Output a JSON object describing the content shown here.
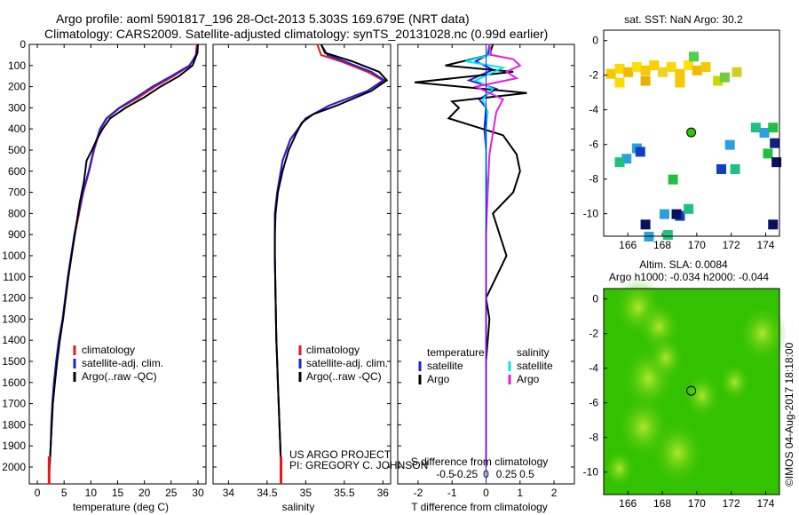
{
  "header": {
    "line1": "Argo profile: aoml 5901817_196 28-Oct-2013 5.303S 169.679E (NRT data)",
    "line2": "Climatology: CARS2009. Satellite-adjusted climatology: synTS_20131028.nc (0.99d earlier)"
  },
  "credit": {
    "project": "US ARGO PROJECT",
    "pi": "PI: GREGORY C. JOHNSON"
  },
  "side_stamp": "©IMOS 04-Aug-2017 18:18:00",
  "colors": {
    "climatology": "#e31a1c",
    "satellite": "#1f1fe0",
    "argo": "#000000",
    "sal_satellite": "#00e5ee",
    "sal_argo": "#e020e0",
    "sla_green": "#33c200"
  },
  "chart_data": [
    {
      "type": "line",
      "panel": "temperature",
      "xlabel": "temperature (deg C)",
      "ylabel": "",
      "xlim": [
        -1.5,
        31.5
      ],
      "ylim": [
        2080,
        0
      ],
      "xticks": [
        0,
        5,
        10,
        15,
        20,
        25,
        30
      ],
      "yticks": [
        0,
        100,
        200,
        300,
        400,
        500,
        600,
        700,
        800,
        900,
        1000,
        1100,
        1200,
        1300,
        1400,
        1500,
        1600,
        1700,
        1800,
        1900,
        2000
      ],
      "legend": [
        "climatology",
        "satellite-adj. clim.",
        "Argo(..raw -QC)"
      ],
      "series": [
        {
          "name": "climatology",
          "color": "#e31a1c",
          "x": [
            29.8,
            29.6,
            28.5,
            25.5,
            22.0,
            19.0,
            15.5,
            13.0,
            11.8,
            10.6,
            9.7,
            8.6,
            7.8,
            7.0,
            6.4,
            5.8,
            5.3,
            4.8,
            4.1,
            3.6,
            3.2,
            2.9,
            2.7,
            2.5,
            2.4,
            2.3,
            2.2
          ],
          "y": [
            0,
            50,
            100,
            150,
            200,
            250,
            300,
            350,
            400,
            500,
            600,
            700,
            800,
            900,
            1000,
            1100,
            1200,
            1300,
            1400,
            1500,
            1600,
            1700,
            1800,
            1900,
            1950,
            2000,
            2040
          ]
        },
        {
          "name": "satellite-adj. clim.",
          "color": "#1f1fe0",
          "x": [
            30.0,
            29.7,
            28.4,
            25.0,
            21.5,
            18.5,
            15.3,
            12.9,
            11.7,
            10.5,
            9.6,
            8.5,
            7.7,
            6.9,
            6.3,
            5.7,
            5.2,
            4.7,
            4.0,
            3.5,
            3.1,
            2.8,
            2.6,
            2.5,
            2.4,
            2.3
          ],
          "y": [
            0,
            50,
            100,
            150,
            200,
            250,
            300,
            350,
            400,
            500,
            600,
            700,
            800,
            900,
            1000,
            1100,
            1200,
            1300,
            1400,
            1500,
            1600,
            1700,
            1800,
            1900,
            1950,
            2000
          ]
        },
        {
          "name": "Argo(..raw -QC)",
          "color": "#000000",
          "x": [
            30.0,
            29.9,
            29.0,
            26.5,
            23.0,
            20.0,
            16.5,
            13.6,
            12.2,
            11.1,
            10.2,
            9.2,
            8.7,
            7.9,
            7.0,
            6.4,
            5.8,
            5.3,
            4.8,
            4.2,
            3.7,
            3.3,
            2.9,
            2.7,
            2.5,
            2.4,
            2.3
          ],
          "y": [
            0,
            40,
            100,
            150,
            200,
            250,
            300,
            350,
            400,
            450,
            500,
            550,
            650,
            750,
            900,
            1000,
            1100,
            1200,
            1300,
            1400,
            1500,
            1600,
            1700,
            1800,
            1900,
            1950,
            2000
          ]
        }
      ]
    },
    {
      "type": "line",
      "panel": "salinity",
      "xlabel": "salinity",
      "ylabel": "",
      "xlim": [
        33.8,
        36.1
      ],
      "ylim": [
        2080,
        0
      ],
      "xticks": [
        34,
        34.5,
        35,
        35.5,
        36
      ],
      "legend": [
        "climatology",
        "satellite-adj. clim.",
        "Argo(..raw -QC)"
      ],
      "series": [
        {
          "name": "climatology",
          "color": "#e31a1c",
          "x": [
            35.15,
            35.2,
            35.45,
            35.8,
            36.0,
            35.8,
            35.3,
            35.0,
            34.9,
            34.8,
            34.7,
            34.63,
            34.6,
            34.6,
            34.6,
            34.61,
            34.62,
            34.63,
            34.64,
            34.65,
            34.66,
            34.67,
            34.68,
            34.68
          ],
          "y": [
            0,
            50,
            80,
            130,
            170,
            220,
            290,
            350,
            400,
            450,
            550,
            700,
            800,
            900,
            1000,
            1200,
            1400,
            1500,
            1600,
            1700,
            1800,
            1900,
            2000,
            2040
          ]
        },
        {
          "name": "satellite-adj. clim.",
          "color": "#1f1fe0",
          "x": [
            35.2,
            35.28,
            35.5,
            35.85,
            36.02,
            35.8,
            35.3,
            35.0,
            34.9,
            34.8,
            34.7,
            34.63,
            34.6,
            34.6,
            34.6,
            34.61,
            34.62,
            34.63,
            34.64,
            34.65,
            34.66,
            34.67,
            34.68
          ],
          "y": [
            0,
            50,
            80,
            130,
            170,
            220,
            290,
            350,
            400,
            450,
            550,
            700,
            800,
            900,
            1000,
            1200,
            1400,
            1500,
            1600,
            1700,
            1800,
            1900,
            2000
          ]
        },
        {
          "name": "Argo(..raw -QC)",
          "color": "#000000",
          "x": [
            35.2,
            35.25,
            35.6,
            35.95,
            36.05,
            35.85,
            35.4,
            35.1,
            34.95,
            34.88,
            34.78,
            34.7,
            34.64,
            34.61,
            34.6,
            34.6,
            34.61,
            34.62,
            34.63,
            34.64,
            34.65,
            34.66,
            34.67,
            34.68
          ],
          "y": [
            0,
            40,
            80,
            130,
            170,
            220,
            290,
            330,
            370,
            420,
            500,
            600,
            700,
            800,
            900,
            1000,
            1200,
            1400,
            1500,
            1600,
            1700,
            1800,
            1900,
            2000
          ]
        }
      ]
    },
    {
      "type": "line",
      "panel": "difference",
      "xlabel": "T difference from climatology",
      "xlabel_top": "S difference from climatology",
      "ylabel": "",
      "xlim": [
        -2.6,
        2.6
      ],
      "ylim": [
        2080,
        0
      ],
      "xticks_T": [
        -2,
        -1,
        0,
        1,
        2
      ],
      "xticks_S": [
        "-0.5",
        "-0.25",
        "0",
        "0.25",
        "0.5"
      ],
      "xticks_S_values": [
        -0.5,
        -0.25,
        0,
        0.25,
        0.5
      ],
      "legend_temperature": {
        "title": "temperature",
        "items": [
          "satellite",
          "Argo"
        ]
      },
      "legend_salinity": {
        "title": "salinity",
        "items": [
          "satellite",
          "Argo"
        ]
      },
      "series": [
        {
          "name": "T satellite",
          "color": "#1f1fe0",
          "x": [
            0.1,
            0.05,
            -0.3,
            0.2,
            -0.5,
            0.3,
            -0.2,
            0.0,
            -0.05,
            0.0,
            0.0,
            0.02,
            0.0,
            0.0,
            0.0,
            0.0,
            0.0,
            0.0,
            0.0
          ],
          "y": [
            0,
            50,
            80,
            120,
            170,
            210,
            260,
            300,
            400,
            500,
            600,
            700,
            800,
            1000,
            1200,
            1400,
            1600,
            1800,
            2000
          ]
        },
        {
          "name": "T Argo",
          "color": "#000000",
          "x": [
            0.2,
            0.1,
            -1.2,
            0.8,
            -2.1,
            1.2,
            -1.0,
            -0.8,
            -1.1,
            0.5,
            0.9,
            1.0,
            0.8,
            0.2,
            0.4,
            0.6,
            0.3,
            0.0,
            0.1,
            0.05,
            0.0,
            0.0,
            0.0,
            0.0,
            0.0
          ],
          "y": [
            0,
            50,
            100,
            130,
            180,
            230,
            270,
            300,
            350,
            430,
            520,
            600,
            700,
            800,
            900,
            1000,
            1100,
            1200,
            1300,
            1400,
            1500,
            1600,
            1700,
            1900,
            2000
          ]
        },
        {
          "name": "S satellite",
          "color": "#00e5ee",
          "x": [
            0.1,
            0.12,
            -0.6,
            0.5,
            -0.3,
            0.2,
            -0.1,
            0.05,
            0.0,
            0.0,
            0.0,
            0.0,
            0.0,
            0.0,
            0.0
          ],
          "y": [
            0,
            50,
            80,
            110,
            170,
            210,
            260,
            320,
            400,
            600,
            800,
            1000,
            1400,
            1800,
            2000
          ]
        },
        {
          "name": "S Argo",
          "color": "#e020e0",
          "x": [
            0.1,
            0.15,
            0.8,
            1.0,
            0.6,
            0.9,
            -0.3,
            0.5,
            0.3,
            0.2,
            0.1,
            0.05,
            0.0,
            0.0,
            0.0,
            0.0
          ],
          "y": [
            0,
            50,
            70,
            100,
            130,
            160,
            200,
            260,
            320,
            420,
            520,
            700,
            900,
            1200,
            1600,
            2000
          ]
        }
      ]
    },
    {
      "type": "scatter",
      "panel": "sst_map",
      "title": "sat. SST: NaN  Argo: 30.2",
      "xlim": [
        164.6,
        174.8
      ],
      "ylim": [
        -11.3,
        0.6
      ],
      "xticks": [
        166,
        168,
        170,
        172,
        174
      ],
      "yticks": [
        0,
        -2,
        -4,
        -6,
        -8,
        -10
      ],
      "argo_position": {
        "lon": 169.679,
        "lat": -5.303
      },
      "points": [
        {
          "lon": 165.0,
          "lat": -1.9,
          "c": "#f6c800"
        },
        {
          "lon": 165.5,
          "lat": -1.6,
          "c": "#ffd700"
        },
        {
          "lon": 166.0,
          "lat": -1.8,
          "c": "#f2b800"
        },
        {
          "lon": 166.5,
          "lat": -1.5,
          "c": "#ffe000"
        },
        {
          "lon": 167.0,
          "lat": -1.7,
          "c": "#f6c800"
        },
        {
          "lon": 167.5,
          "lat": -1.4,
          "c": "#ffcc00"
        },
        {
          "lon": 168.0,
          "lat": -1.8,
          "c": "#f0d020"
        },
        {
          "lon": 168.5,
          "lat": -1.5,
          "c": "#ffd700"
        },
        {
          "lon": 169.0,
          "lat": -1.9,
          "c": "#f6c800"
        },
        {
          "lon": 169.5,
          "lat": -1.4,
          "c": "#ffe000"
        },
        {
          "lon": 170.0,
          "lat": -1.7,
          "c": "#f2b800"
        },
        {
          "lon": 170.5,
          "lat": -1.5,
          "c": "#f6c800"
        },
        {
          "lon": 165.5,
          "lat": -2.4,
          "c": "#ffd700"
        },
        {
          "lon": 167.0,
          "lat": -2.3,
          "c": "#e8b000"
        },
        {
          "lon": 169.0,
          "lat": -2.4,
          "c": "#f6c800"
        },
        {
          "lon": 171.2,
          "lat": -2.3,
          "c": "#c8d800"
        },
        {
          "lon": 169.8,
          "lat": -0.9,
          "c": "#50d050"
        },
        {
          "lon": 171.6,
          "lat": -2.1,
          "c": "#70cc40"
        },
        {
          "lon": 172.3,
          "lat": -1.8,
          "c": "#d0d020"
        },
        {
          "lon": 166.5,
          "lat": -6.2,
          "c": "#2aa0e0"
        },
        {
          "lon": 165.9,
          "lat": -6.8,
          "c": "#2aa0e0"
        },
        {
          "lon": 166.7,
          "lat": -6.4,
          "c": "#1040c0"
        },
        {
          "lon": 165.5,
          "lat": -7.0,
          "c": "#20c080"
        },
        {
          "lon": 171.9,
          "lat": -6.0,
          "c": "#2aa0e0"
        },
        {
          "lon": 171.4,
          "lat": -7.4,
          "c": "#1040c0"
        },
        {
          "lon": 172.2,
          "lat": -7.4,
          "c": "#20c080"
        },
        {
          "lon": 168.6,
          "lat": -8.0,
          "c": "#20c040"
        },
        {
          "lon": 173.4,
          "lat": -5.0,
          "c": "#20c080"
        },
        {
          "lon": 173.9,
          "lat": -5.3,
          "c": "#2aa0e0"
        },
        {
          "lon": 174.1,
          "lat": -6.5,
          "c": "#20c040"
        },
        {
          "lon": 174.5,
          "lat": -5.9,
          "c": "#102080"
        },
        {
          "lon": 174.4,
          "lat": -5.0,
          "c": "#20c040"
        },
        {
          "lon": 174.6,
          "lat": -7.0,
          "c": "#0a1060"
        },
        {
          "lon": 168.1,
          "lat": -10.0,
          "c": "#2aa0e0"
        },
        {
          "lon": 169.0,
          "lat": -10.1,
          "c": "#1040c0"
        },
        {
          "lon": 168.8,
          "lat": -10.0,
          "c": "#0a1060"
        },
        {
          "lon": 169.5,
          "lat": -9.7,
          "c": "#20c080"
        },
        {
          "lon": 167.0,
          "lat": -10.6,
          "c": "#0a1060"
        },
        {
          "lon": 174.4,
          "lat": -10.6,
          "c": "#0a1060"
        },
        {
          "lon": 168.3,
          "lat": -11.2,
          "c": "#20c080"
        },
        {
          "lon": 167.2,
          "lat": -11.3,
          "c": "#2aa0e0"
        }
      ]
    },
    {
      "type": "heatmap",
      "panel": "sla_map",
      "title_line1": "Altim. SLA: 0.0084",
      "title_line2": "Argo h1000: -0.034 h2000: -0.044",
      "xlim": [
        164.6,
        174.8
      ],
      "ylim": [
        -11.3,
        0.6
      ],
      "xticks": [
        166,
        168,
        170,
        172,
        174
      ],
      "yticks": [
        0,
        -2,
        -4,
        -6,
        -8,
        -10
      ],
      "argo_position": {
        "lon": 169.679,
        "lat": -5.303
      },
      "base_color": "#33c200",
      "highlights": [
        {
          "lon": 166.6,
          "lat": -0.5,
          "r": 0.9
        },
        {
          "lon": 167.8,
          "lat": -1.6,
          "r": 0.8
        },
        {
          "lon": 173.8,
          "lat": -2.0,
          "r": 0.9
        },
        {
          "lon": 167.2,
          "lat": -4.6,
          "r": 1.0
        },
        {
          "lon": 168.2,
          "lat": -3.4,
          "r": 0.7
        },
        {
          "lon": 166.9,
          "lat": -7.4,
          "r": 1.0
        },
        {
          "lon": 168.9,
          "lat": -8.9,
          "r": 1.0
        },
        {
          "lon": 170.3,
          "lat": -5.6,
          "r": 0.7
        },
        {
          "lon": 165.5,
          "lat": -9.8,
          "r": 0.6
        },
        {
          "lon": 172.2,
          "lat": -4.8,
          "r": 0.6
        }
      ]
    }
  ]
}
